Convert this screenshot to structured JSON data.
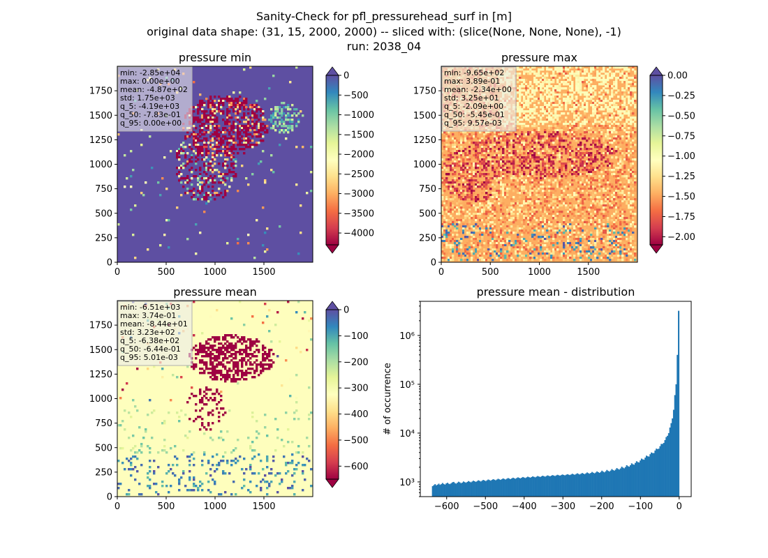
{
  "figure": {
    "title_lines": [
      "Sanity-Check for pfl_pressurehead_surf in [m]",
      "original data shape: (31, 15, 2000, 2000) -- sliced with: (slice(None, None, None), -1)",
      "run: 2038_04"
    ]
  },
  "chart_data": [
    {
      "type": "heatmap",
      "title": "pressure min",
      "colormap": "Spectral",
      "x_ticks": [
        "0",
        "500",
        "1000",
        "1500"
      ],
      "x_tick_values": [
        0,
        500,
        1000,
        1500
      ],
      "y_ticks": [
        "0",
        "250",
        "500",
        "750",
        "1000",
        "1250",
        "1500",
        "1750"
      ],
      "y_tick_values": [
        0,
        250,
        500,
        750,
        1000,
        1250,
        1500,
        1750
      ],
      "xlim": [
        0,
        2000
      ],
      "ylim": [
        0,
        2000
      ],
      "colorbar": {
        "range": [
          -4300,
          0
        ],
        "ticks": [
          "0",
          "−500",
          "−1000",
          "−1500",
          "−2000",
          "−2500",
          "−3000",
          "−3500",
          "−4000"
        ],
        "tick_values": [
          0,
          -500,
          -1000,
          -1500,
          -2000,
          -2500,
          -3000,
          -3500,
          -4000
        ],
        "extend": "both"
      },
      "stats": [
        "min: -2.85e+04",
        "max: 0.00e+00",
        "mean: -4.87e+02",
        "std: 1.75e+03",
        "q_5: -4.19e+03",
        "q_50: -7.83e-01",
        "q_95: 0.00e+00"
      ],
      "base_color": "#5e4fa2"
    },
    {
      "type": "heatmap",
      "title": "pressure max",
      "colormap": "Spectral",
      "x_ticks": [
        "0",
        "500",
        "1000",
        "1500"
      ],
      "x_tick_values": [
        0,
        500,
        1000,
        1500
      ],
      "y_ticks": [
        "0",
        "250",
        "500",
        "750",
        "1000",
        "1250",
        "1500",
        "1750"
      ],
      "y_tick_values": [
        0,
        250,
        500,
        750,
        1000,
        1250,
        1500,
        1750
      ],
      "xlim": [
        0,
        2000
      ],
      "ylim": [
        0,
        2000
      ],
      "colorbar": {
        "range": [
          -2.1,
          0.0
        ],
        "ticks": [
          "0.00",
          "−0.25",
          "−0.50",
          "−0.75",
          "−1.00",
          "−1.25",
          "−1.50",
          "−1.75",
          "−2.00"
        ],
        "tick_values": [
          0,
          -0.25,
          -0.5,
          -0.75,
          -1.0,
          -1.25,
          -1.5,
          -1.75,
          -2.0
        ],
        "extend": "both"
      },
      "stats": [
        "min: -9.65e+02",
        "max: 3.89e-01",
        "mean: -2.34e+00",
        "std: 3.25e+01",
        "q_5: -2.09e+00",
        "q_50: -5.45e-01",
        "q_95: 9.57e-03"
      ],
      "base_color": "#fdae61"
    },
    {
      "type": "heatmap",
      "title": "pressure mean",
      "colormap": "Spectral",
      "x_ticks": [
        "0",
        "500",
        "1000",
        "1500"
      ],
      "x_tick_values": [
        0,
        500,
        1000,
        1500
      ],
      "y_ticks": [
        "0",
        "250",
        "500",
        "750",
        "1000",
        "1250",
        "1500",
        "1750"
      ],
      "y_tick_values": [
        0,
        250,
        500,
        750,
        1000,
        1250,
        1500,
        1750
      ],
      "xlim": [
        0,
        2000
      ],
      "ylim": [
        0,
        2000
      ],
      "colorbar": {
        "range": [
          -650,
          0
        ],
        "ticks": [
          "0",
          "−100",
          "−200",
          "−300",
          "−400",
          "−500",
          "−600"
        ],
        "tick_values": [
          0,
          -100,
          -200,
          -300,
          -400,
          -500,
          -600
        ],
        "extend": "both"
      },
      "stats": [
        "min: -6.51e+03",
        "max: 3.74e-01",
        "mean: -8.44e+01",
        "std: 3.23e+02",
        "q_5: -6.38e+02",
        "q_50: -6.44e-01",
        "q_95: 5.01e-03"
      ],
      "base_color": "#fefebd"
    },
    {
      "type": "bar",
      "title": "pressure mean - distribution",
      "ylabel": "# of occurrence",
      "yscale": "log",
      "ylim": [
        500,
        5000000
      ],
      "xlim": [
        -668,
        31
      ],
      "x_ticks": [
        "−600",
        "−500",
        "−400",
        "−300",
        "−200",
        "−100",
        "0"
      ],
      "x_tick_values": [
        -600,
        -500,
        -400,
        -300,
        -200,
        -100,
        0
      ],
      "y_ticks": [
        "10³",
        "10⁴",
        "10⁵",
        "10⁶"
      ],
      "y_tick_values": [
        1000,
        10000,
        100000,
        1000000
      ],
      "bar_color": "#1f77b4",
      "bin_range": [
        -638,
        0
      ],
      "bins": 200,
      "counts": [
        820,
        860,
        900,
        850,
        880,
        920,
        870,
        900,
        950,
        910,
        880,
        930,
        960,
        920,
        900,
        940,
        980,
        1000,
        950,
        920,
        960,
        1010,
        980,
        940,
        970,
        1020,
        990,
        960,
        1000,
        1040,
        1010,
        980,
        1020,
        1060,
        1030,
        1000,
        1040,
        1080,
        1050,
        1020,
        1060,
        1100,
        1070,
        1040,
        1080,
        1120,
        1090,
        1060,
        1100,
        1140,
        1110,
        1080,
        1120,
        1160,
        1130,
        1100,
        1140,
        1180,
        1150,
        1120,
        1160,
        1200,
        1170,
        1140,
        1180,
        1220,
        1190,
        1160,
        1200,
        1240,
        1210,
        1180,
        1220,
        1260,
        1230,
        1200,
        1240,
        1280,
        1250,
        1220,
        1260,
        1300,
        1270,
        1240,
        1280,
        1320,
        1290,
        1260,
        1300,
        1340,
        1310,
        1280,
        1320,
        1360,
        1330,
        1300,
        1340,
        1380,
        1350,
        1320,
        1360,
        1400,
        1370,
        1340,
        1380,
        1420,
        1390,
        1360,
        1400,
        1440,
        1410,
        1380,
        1420,
        1470,
        1430,
        1400,
        1450,
        1500,
        1460,
        1420,
        1470,
        1520,
        1480,
        1440,
        1500,
        1560,
        1510,
        1470,
        1530,
        1600,
        1540,
        1500,
        1560,
        1640,
        1580,
        1530,
        1600,
        1700,
        1620,
        1570,
        1650,
        1760,
        1680,
        1630,
        1710,
        1830,
        1750,
        1700,
        1790,
        1920,
        1840,
        1790,
        1890,
        2050,
        1960,
        1900,
        2020,
        2200,
        2100,
        2050,
        2200,
        2400,
        2300,
        2250,
        2450,
        2650,
        2550,
        2500,
        2750,
        3000,
        2900,
        2850,
        3150,
        3450,
        3350,
        3300,
        3700,
        4000,
        3900,
        3900,
        4400,
        4800,
        4700,
        4800,
        5400,
        6000,
        6000,
        6300,
        7200,
        8300,
        8800,
        10000,
        13000,
        16000,
        20000,
        30000,
        60000,
        100000,
        400000,
        3200000
      ]
    }
  ]
}
